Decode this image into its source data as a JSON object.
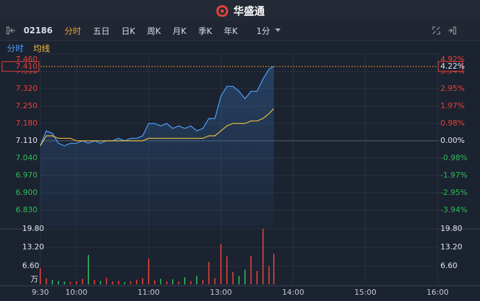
{
  "ui": {
    "brand": "华盛通",
    "code": "02186",
    "tabs": [
      "分时",
      "五日",
      "日K",
      "周K",
      "月K",
      "季K",
      "年K",
      "1分"
    ]
  },
  "chart_data": {
    "type": "line",
    "series": [
      {
        "name": "分时",
        "color": "#4ea3ff",
        "values": [
          7.09,
          7.15,
          7.14,
          7.1,
          7.09,
          7.1,
          7.1,
          7.11,
          7.1,
          7.11,
          7.1,
          7.11,
          7.11,
          7.12,
          7.11,
          7.12,
          7.12,
          7.13,
          7.18,
          7.18,
          7.17,
          7.18,
          7.16,
          7.17,
          7.16,
          7.17,
          7.15,
          7.16,
          7.2,
          7.2,
          7.29,
          7.33,
          7.33,
          7.31,
          7.28,
          7.31,
          7.31,
          7.36,
          7.4,
          7.41
        ]
      },
      {
        "name": "均线",
        "color": "#f0c040",
        "values": [
          7.09,
          7.13,
          7.13,
          7.12,
          7.12,
          7.12,
          7.11,
          7.11,
          7.11,
          7.11,
          7.11,
          7.11,
          7.11,
          7.11,
          7.11,
          7.11,
          7.11,
          7.11,
          7.12,
          7.12,
          7.12,
          7.12,
          7.12,
          7.12,
          7.12,
          7.12,
          7.12,
          7.12,
          7.13,
          7.13,
          7.15,
          7.17,
          7.18,
          7.18,
          7.18,
          7.19,
          7.19,
          7.2,
          7.22,
          7.24
        ]
      }
    ],
    "x": [
      "9:30",
      "9:35",
      "9:40",
      "9:45",
      "9:50",
      "9:55",
      "10:00",
      "10:05",
      "10:10",
      "10:15",
      "10:20",
      "10:25",
      "10:30",
      "10:35",
      "10:40",
      "10:45",
      "10:50",
      "10:55",
      "11:00",
      "11:05",
      "11:10",
      "11:15",
      "11:20",
      "11:25",
      "11:30",
      "11:35",
      "11:40",
      "11:45",
      "11:50",
      "11:55",
      "13:00",
      "13:05",
      "13:10",
      "13:15",
      "13:20",
      "13:25",
      "13:30",
      "13:35",
      "13:40",
      "13:44"
    ],
    "xlim": [
      "9:30",
      "16:00"
    ],
    "x_break": [
      "12:00",
      "13:00"
    ],
    "xticks": [
      "9:30",
      "10:00",
      "11:00",
      "13:00",
      "14:00",
      "15:00",
      "16:00"
    ],
    "ylim": [
      6.76,
      7.46
    ],
    "yticks": [
      {
        "value": 7.46,
        "label": "7.460"
      },
      {
        "value": 7.39,
        "label": "7.390"
      },
      {
        "value": 7.32,
        "label": "7.320"
      },
      {
        "value": 7.25,
        "label": "7.250"
      },
      {
        "value": 7.18,
        "label": "7.180"
      },
      {
        "value": 7.11,
        "label": "7.110"
      },
      {
        "value": 7.04,
        "label": "7.040"
      },
      {
        "value": 6.97,
        "label": "6.970"
      },
      {
        "value": 6.9,
        "label": "6.900"
      },
      {
        "value": 6.83,
        "label": "6.830"
      }
    ],
    "y2lim": [
      -4.92,
      4.92
    ],
    "y2ticks": [
      {
        "value": 4.92,
        "label": "4.92%"
      },
      {
        "value": 3.94,
        "label": "3.94%"
      },
      {
        "value": 2.95,
        "label": "2.95%"
      },
      {
        "value": 1.97,
        "label": "1.97%"
      },
      {
        "value": 0.98,
        "label": "0.98%"
      },
      {
        "value": 0,
        "label": "0.00%"
      },
      {
        "value": -0.98,
        "label": "-0.98%"
      },
      {
        "value": -1.97,
        "label": "-1.97%"
      },
      {
        "value": -2.95,
        "label": "-2.95%"
      },
      {
        "value": -3.94,
        "label": "-3.94%"
      }
    ],
    "last_price": {
      "value": 7.41,
      "label": "7.410"
    },
    "last_change": {
      "value": 4.22,
      "label": "4.22%"
    },
    "volume": {
      "unit": "万",
      "values": [
        5.8,
        2.1,
        1.5,
        1.2,
        1.0,
        0.9,
        1.1,
        2.0,
        10.5,
        1.5,
        1.2,
        2.4,
        1.0,
        1.3,
        0.8,
        1.1,
        1.6,
        2.2,
        9.2,
        1.4,
        2.0,
        1.1,
        1.8,
        1.0,
        2.5,
        1.2,
        3.1,
        1.5,
        8.0,
        2.2,
        14.4,
        10.0,
        4.5,
        3.0,
        5.2,
        10.2,
        4.8,
        19.9,
        6.5,
        11.0
      ],
      "ylim": [
        0,
        19.8
      ],
      "yticks": [
        {
          "value": 19.8,
          "label": "19.80"
        },
        {
          "value": 13.2,
          "label": "13.20"
        },
        {
          "value": 6.6,
          "label": "6.60"
        }
      ],
      "up_color": "#e8443a",
      "down_color": "#2fbf5a"
    }
  }
}
